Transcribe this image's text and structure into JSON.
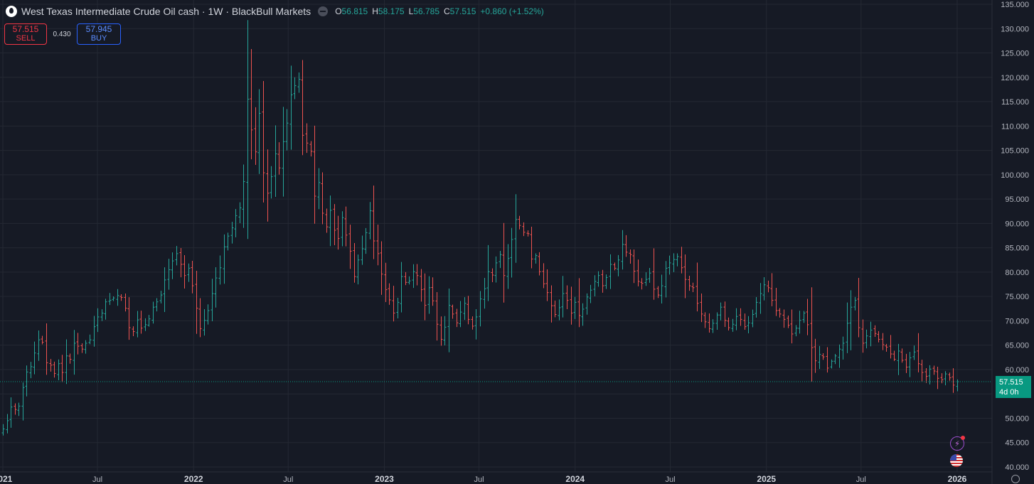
{
  "header": {
    "title": "West Texas Intermediate Crude Oil cash · 1W · BlackBull Markets",
    "ohlc": {
      "o_label": "O",
      "o": "56.815",
      "h_label": "H",
      "h": "58.175",
      "l_label": "L",
      "l": "56.785",
      "c_label": "C",
      "c": "57.515",
      "change": "+0.860 (+1.52%)"
    }
  },
  "trade": {
    "sell_price": "57.515",
    "sell_label": "SELL",
    "spread": "0.430",
    "buy_price": "57.945",
    "buy_label": "BUY"
  },
  "last_price": {
    "price": "57.515",
    "countdown": "4d 0h"
  },
  "colors": {
    "up": "#26a69a",
    "down": "#ef5350",
    "background": "#161a25",
    "grid": "#242833",
    "badge": "#089981"
  },
  "icons": [
    "drop-icon",
    "eye-icon",
    "flash-icon",
    "flag-icon",
    "settings-icon"
  ],
  "chart_data": {
    "type": "ohlc-bar",
    "interval": "1W",
    "ylim": [
      40,
      135
    ],
    "y_ticks": [
      "135.000",
      "130.000",
      "125.000",
      "120.000",
      "115.000",
      "110.000",
      "105.000",
      "100.000",
      "95.000",
      "90.000",
      "85.000",
      "80.000",
      "75.000",
      "70.000",
      "65.000",
      "60.000",
      "55.000",
      "50.000",
      "45.000",
      "40.000"
    ],
    "x_ticks": [
      {
        "label": "2021",
        "date": "2021-01-01"
      },
      {
        "label": "Jul",
        "date": "2021-07-01"
      },
      {
        "label": "2022",
        "date": "2022-01-01"
      },
      {
        "label": "Jul",
        "date": "2022-07-01"
      },
      {
        "label": "2023",
        "date": "2023-01-01"
      },
      {
        "label": "Jul",
        "date": "2023-07-01"
      },
      {
        "label": "2024",
        "date": "2024-01-01"
      },
      {
        "label": "Jul",
        "date": "2024-07-01"
      },
      {
        "label": "2025",
        "date": "2025-01-01"
      },
      {
        "label": "Jul",
        "date": "2025-07-01"
      },
      {
        "label": "2026",
        "date": "2026-01-01"
      }
    ],
    "x_range": [
      "2021-01-01",
      "2026-01-01"
    ],
    "weekly_close": [
      47.8,
      49.5,
      52.3,
      51.8,
      52.5,
      56.3,
      59.5,
      60.6,
      63.4,
      66.1,
      65.6,
      61.4,
      60.9,
      59.2,
      61.2,
      59.4,
      62.8,
      62.1,
      65.4,
      64.8,
      64.2,
      65.4,
      66.1,
      68.8,
      70.8,
      71.6,
      73.9,
      74.2,
      74.7,
      75.2,
      74.8,
      72.6,
      68.6,
      67.8,
      70.2,
      68.5,
      69.2,
      70.4,
      72.8,
      73.9,
      75.3,
      78.4,
      80.5,
      82.3,
      83.8,
      81.6,
      79.3,
      80.8,
      77.2,
      72.6,
      68.4,
      70.1,
      72.1,
      75.6,
      78.8,
      80.9,
      85.2,
      87.4,
      89.1,
      91.6,
      93.2,
      98.6,
      115.5,
      109.2,
      104.7,
      112.6,
      100.4,
      96.2,
      99.6,
      104.3,
      101.4,
      106.8,
      110.6,
      116.4,
      118.3,
      119.6,
      108.1,
      106.5,
      104.8,
      95.6,
      98.4,
      92.1,
      89.3,
      92.7,
      88.6,
      86.9,
      91.2,
      87.6,
      84.3,
      79.1,
      82.5,
      84.8,
      88.1,
      92.6,
      86.4,
      83.8,
      79.6,
      76.4,
      74.3,
      71.6,
      73.8,
      79.1,
      77.9,
      78.2,
      80.1,
      79.3,
      76.4,
      73.2,
      76.8,
      74.1,
      69.3,
      66.2,
      68.7,
      73.2,
      71.4,
      69.6,
      71.8,
      73.6,
      70.3,
      68.9,
      70.8,
      74.5,
      76.6,
      80.1,
      79.4,
      81.9,
      83.6,
      79.3,
      82.8,
      86.7,
      90.8,
      89.6,
      88.2,
      87.9,
      82.7,
      83.4,
      80.1,
      77.6,
      75.8,
      73.1,
      71.3,
      72.7,
      75.6,
      74.2,
      71.6,
      73.8,
      71.1,
      72.4,
      74.9,
      76.3,
      78.1,
      79.3,
      77.2,
      78.9,
      81.6,
      80.8,
      82.5,
      85.7,
      84.1,
      83.6,
      80.2,
      78.1,
      77.7,
      78.5,
      79.8,
      76.5,
      75.3,
      77.2,
      80.8,
      81.9,
      82.6,
      83.2,
      80.9,
      78.5,
      77.2,
      76.8,
      73.6,
      71.4,
      69.8,
      68.4,
      69.5,
      71.2,
      72.8,
      70.1,
      68.6,
      69.3,
      70.9,
      70.3,
      68.8,
      69.6,
      71.3,
      73.8,
      75.6,
      77.4,
      76.8,
      74.2,
      72.1,
      71.4,
      70.3,
      69.1,
      67.3,
      68.5,
      70.1,
      71.6,
      69.2,
      64.5,
      61.8,
      63.1,
      62.6,
      60.3,
      61.7,
      62.8,
      64.2,
      65.4,
      69.5,
      72.8,
      74.2,
      68.6,
      65.4,
      66.9,
      68.1,
      67.4,
      66.2,
      65.1,
      64.6,
      63.2,
      62.1,
      63.8,
      61.9,
      60.5,
      62.4,
      63.6,
      61.2,
      59.4,
      58.6,
      60.1,
      59.7,
      58.2,
      57.9,
      59.1,
      58.3,
      56.8,
      57.5
    ],
    "last_close": 57.515
  }
}
